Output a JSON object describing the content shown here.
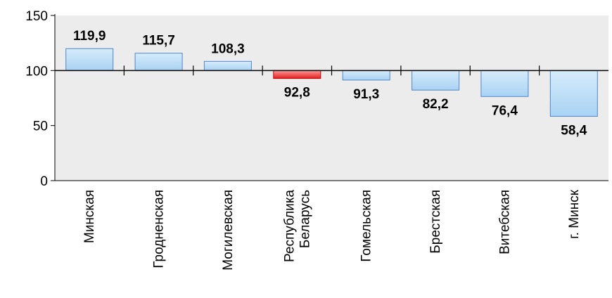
{
  "chart_data": {
    "type": "bar",
    "baseline": 100,
    "ylim": [
      0,
      150
    ],
    "yticks": [
      0,
      50,
      100,
      150
    ],
    "grid": false,
    "categories": [
      [
        "Минская"
      ],
      [
        "Гродненская"
      ],
      [
        "Могилевская"
      ],
      [
        "Республика",
        "Беларусь"
      ],
      [
        "Гомельская"
      ],
      [
        "Брестская"
      ],
      [
        "Витебская"
      ],
      [
        "г. Минск"
      ]
    ],
    "values": [
      119.9,
      115.7,
      108.3,
      92.8,
      91.3,
      82.2,
      76.4,
      58.4
    ],
    "value_labels": [
      "119,9",
      "115,7",
      "108,3",
      "92,8",
      "91,3",
      "82,2",
      "76,4",
      "58,4"
    ],
    "highlight_index": 3,
    "colors": {
      "bar_fill_top": "#d6ecfb",
      "bar_fill_bottom": "#a9d2f3",
      "bar_stroke": "#4f86c6",
      "highlight_top": "#ff9a9a",
      "highlight_bottom": "#e02020",
      "highlight_stroke": "#c00000",
      "plot_background": "#ececec"
    }
  }
}
